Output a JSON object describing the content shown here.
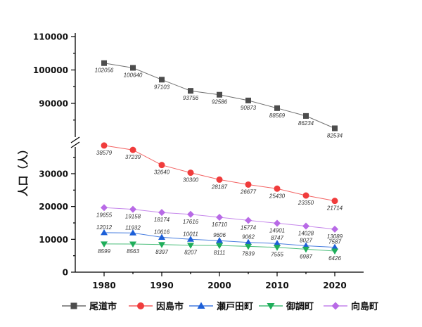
{
  "chart_data": {
    "type": "line",
    "ylabel": "人口（人）",
    "x": [
      1980,
      1985,
      1990,
      1995,
      2000,
      2005,
      2010,
      2015,
      2020
    ],
    "x_ticks": [
      1980,
      1990,
      2000,
      2010,
      2020
    ],
    "y_ticks": [
      0,
      10000,
      20000,
      30000,
      90000,
      100000,
      110000
    ],
    "y_axis_break": {
      "lower_range": [
        0,
        40000
      ],
      "upper_range": [
        80000,
        110000
      ]
    },
    "grid": false,
    "data_labels": true,
    "legend_position": "bottom",
    "series": [
      {
        "name": "尾道市",
        "color": "#4d4d4d",
        "marker": "square",
        "values": [
          102056,
          100640,
          97103,
          93756,
          92586,
          90873,
          88569,
          86234,
          82534
        ]
      },
      {
        "name": "因島市",
        "color": "#f03c3c",
        "marker": "circle",
        "values": [
          38579,
          37239,
          32640,
          30300,
          28187,
          26677,
          25430,
          23350,
          21714
        ]
      },
      {
        "name": "瀬戸田町",
        "color": "#1c5fd8",
        "marker": "triangle-up",
        "values": [
          12012,
          11932,
          10616,
          10011,
          9606,
          9062,
          8747,
          8027,
          7587
        ]
      },
      {
        "name": "御調町",
        "color": "#1fae5a",
        "marker": "triangle-down",
        "values": [
          8599,
          8563,
          8397,
          8207,
          8111,
          7839,
          7555,
          6987,
          6426
        ]
      },
      {
        "name": "向島町",
        "color": "#b86ae6",
        "marker": "diamond",
        "values": [
          19655,
          19158,
          18174,
          17616,
          16710,
          15774,
          14901,
          14028,
          13089
        ]
      }
    ]
  }
}
